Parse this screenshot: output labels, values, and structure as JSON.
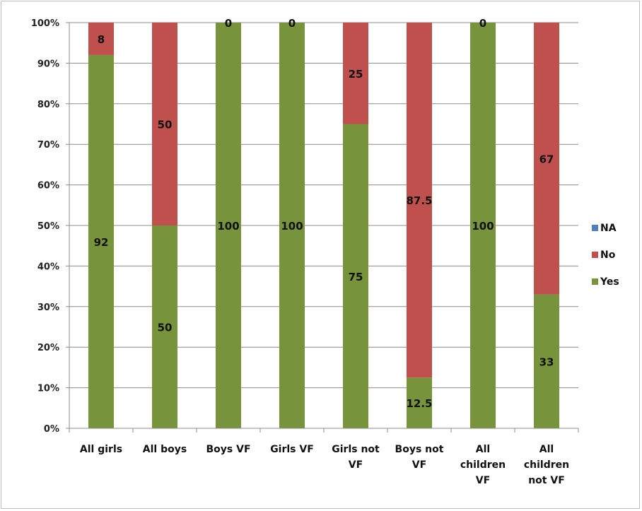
{
  "chart_data": {
    "type": "bar",
    "stacked": true,
    "percent": true,
    "categories": [
      [
        "All girls"
      ],
      [
        "All boys"
      ],
      [
        "Boys VF"
      ],
      [
        "Girls VF"
      ],
      [
        "Girls not",
        "VF"
      ],
      [
        "Boys not",
        "VF"
      ],
      [
        "All",
        "children",
        "VF"
      ],
      [
        "All",
        "children",
        "not VF"
      ]
    ],
    "series": [
      {
        "name": "Yes",
        "color": "#77933c",
        "values": [
          92,
          50,
          100,
          100,
          75,
          12.5,
          100,
          33
        ],
        "labels": [
          "92",
          "50",
          "100",
          "100",
          "75",
          "12.5",
          "100",
          "33"
        ]
      },
      {
        "name": "No",
        "color": "#c0504d",
        "values": [
          8,
          50,
          0,
          0,
          25,
          87.5,
          0,
          67
        ],
        "labels": [
          "8",
          "50",
          "0",
          "0",
          "25",
          "87.5",
          "0",
          "67"
        ]
      },
      {
        "name": "NA",
        "color": "#4f81bd",
        "values": [
          0,
          0,
          0,
          0,
          0,
          0,
          0,
          0
        ],
        "labels": []
      }
    ],
    "ylim": [
      0,
      100
    ],
    "yticks": [
      "0%",
      "10%",
      "20%",
      "30%",
      "40%",
      "50%",
      "60%",
      "70%",
      "80%",
      "90%",
      "100%"
    ],
    "grid": true,
    "legend": {
      "position": "right",
      "order": [
        "NA",
        "No",
        "Yes"
      ]
    }
  }
}
